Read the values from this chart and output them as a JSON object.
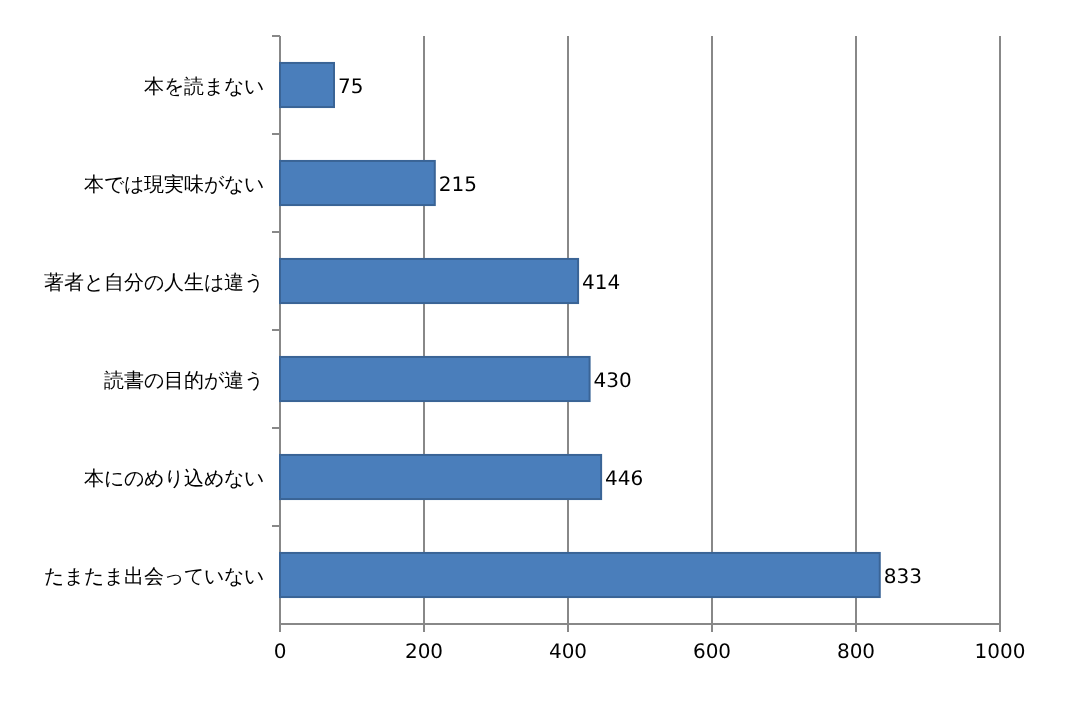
{
  "chart_data": {
    "type": "bar",
    "orientation": "horizontal",
    "categories": [
      "本を読まない",
      "本では現実味がない",
      "著者と自分の人生は違う",
      "読書の目的が違う",
      "本にのめり込めない",
      "たまたま出会っていない"
    ],
    "values": [
      75,
      215,
      414,
      430,
      446,
      833
    ],
    "color": "#4a7ebb",
    "xlim": [
      0,
      1000
    ],
    "xticks": [
      0,
      200,
      400,
      600,
      800,
      1000
    ],
    "grid": "x",
    "data_labels": true
  }
}
